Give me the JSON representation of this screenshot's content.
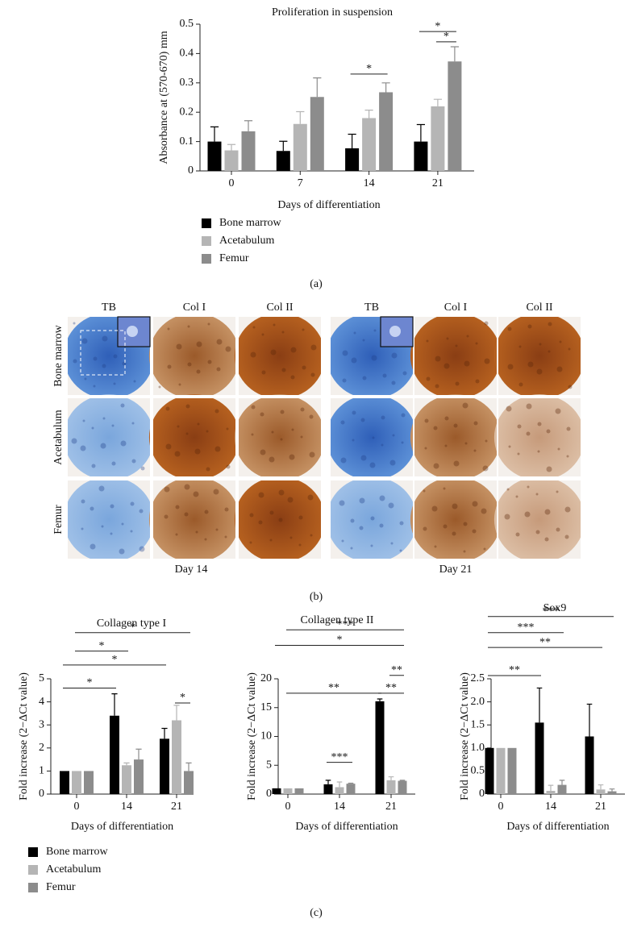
{
  "figure": {
    "panel_labels": [
      "(a)",
      "(b)",
      "(c)"
    ],
    "images": {
      "columns": [
        "TB",
        "Col I",
        "Col II",
        "TB",
        "Col I",
        "Col II"
      ],
      "rows": [
        "Bone marrow",
        "Acetabulum",
        "Femur"
      ],
      "groups": [
        "Day 14",
        "Day 21"
      ]
    }
  },
  "chart_data": [
    {
      "type": "bar",
      "title": "Proliferation in suspension",
      "xlabel": "Days of differentiation",
      "ylabel": "Absorbance at (570-670) mm",
      "categories": [
        "0",
        "7",
        "14",
        "21"
      ],
      "ylim": [
        0,
        0.5
      ],
      "yticks": [
        0,
        0.1,
        0.2,
        0.3,
        0.4,
        0.5
      ],
      "legend": true,
      "series": [
        {
          "name": "Bone marrow",
          "color": "#000000",
          "values": [
            0.1,
            0.068,
            0.077,
            0.1
          ],
          "errors": [
            0.05,
            0.033,
            0.048,
            0.058
          ]
        },
        {
          "name": "Acetabulum",
          "color": "#b5b5b5",
          "values": [
            0.07,
            0.16,
            0.18,
            0.22
          ],
          "errors": [
            0.02,
            0.042,
            0.027,
            0.024
          ]
        },
        {
          "name": "Femur",
          "color": "#8c8c8c",
          "values": [
            0.135,
            0.252,
            0.268,
            0.373
          ],
          "errors": [
            0.036,
            0.065,
            0.032,
            0.05
          ]
        }
      ],
      "brackets": [
        {
          "text": "*",
          "y": 0.33,
          "from": [
            2,
            0
          ],
          "to": [
            2,
            2
          ]
        },
        {
          "text": "*",
          "y": 0.475,
          "from": [
            3,
            0
          ],
          "to": [
            3,
            2
          ]
        },
        {
          "text": "*",
          "y": 0.44,
          "from": [
            3,
            1
          ],
          "to": [
            3,
            2
          ]
        }
      ]
    },
    {
      "type": "bar",
      "title": "Collagen type I",
      "xlabel": "Days of differentiation",
      "ylabel": "Fold increase (2−ΔCt value)",
      "categories": [
        "0",
        "14",
        "21"
      ],
      "ylim": [
        0,
        5
      ],
      "yticks": [
        0,
        1,
        2,
        3,
        4,
        5
      ],
      "legend": true,
      "series": [
        {
          "name": "Bone marrow",
          "color": "#000000",
          "values": [
            1,
            3.4,
            2.4
          ],
          "errors": [
            null,
            0.95,
            0.45
          ]
        },
        {
          "name": "Acetabulum",
          "color": "#b5b5b5",
          "values": [
            1,
            1.25,
            3.2
          ],
          "errors": [
            null,
            0.1,
            0.65
          ]
        },
        {
          "name": "Femur",
          "color": "#8c8c8c",
          "values": [
            1,
            1.5,
            1
          ],
          "errors": [
            null,
            0.45,
            0.35
          ]
        }
      ],
      "brackets": [
        {
          "text": "*",
          "y": 7.0,
          "from": [
            0,
            1
          ],
          "to": [
            2,
            2
          ]
        },
        {
          "text": "*",
          "y": 6.2,
          "from": [
            0,
            1
          ],
          "to": [
            1,
            1
          ]
        },
        {
          "text": "*",
          "y": 5.6,
          "from": [
            0,
            0
          ],
          "to": [
            2,
            0
          ]
        },
        {
          "text": "*",
          "y": 4.6,
          "from": [
            0,
            0
          ],
          "to": [
            1,
            0
          ]
        },
        {
          "text": "*",
          "y": 3.95,
          "from": [
            2,
            1
          ],
          "to": [
            2,
            2
          ]
        }
      ]
    },
    {
      "type": "bar",
      "title": "Collagen type II",
      "xlabel": "Days of differentiation",
      "ylabel": "Fold increase (2−ΔCt value)",
      "categories": [
        "0",
        "14",
        "21"
      ],
      "ylim": [
        0,
        20
      ],
      "yticks": [
        0,
        5,
        10,
        15,
        20
      ],
      "series": [
        {
          "color": "#000000",
          "values": [
            1,
            1.7,
            16.1
          ],
          "errors": [
            null,
            0.7,
            0.4
          ]
        },
        {
          "color": "#b5b5b5",
          "values": [
            1,
            1.2,
            2.4
          ],
          "errors": [
            null,
            0.9,
            0.6
          ]
        },
        {
          "color": "#8c8c8c",
          "values": [
            1,
            1.8,
            2.3
          ],
          "errors": [
            null,
            0.1,
            0.1
          ]
        }
      ],
      "brackets": [
        {
          "text": "***",
          "y": 28.5,
          "from": [
            0,
            1
          ],
          "to": [
            2,
            2
          ]
        },
        {
          "text": "*",
          "y": 25.8,
          "from": [
            0,
            0
          ],
          "to": [
            2,
            2
          ]
        },
        {
          "text": "**",
          "y": 20.6,
          "from": [
            2,
            1
          ],
          "to": [
            2,
            2
          ]
        },
        {
          "text": "**",
          "y": 17.5,
          "from": [
            0,
            1
          ],
          "to": [
            2,
            0
          ]
        },
        {
          "text": "**",
          "y": 17.5,
          "from": [
            2,
            0
          ],
          "to": [
            2,
            2
          ]
        },
        {
          "text": "***",
          "y": 5.5,
          "from": [
            1,
            0
          ],
          "to": [
            1,
            2
          ]
        }
      ]
    },
    {
      "type": "bar",
      "title": "Sox9",
      "xlabel": "Days of differentiation",
      "ylabel": "Fold increase (2−ΔCt value)",
      "categories": [
        "0",
        "14",
        "21"
      ],
      "ylim": [
        0,
        2.5
      ],
      "yticks": [
        0,
        0.5,
        {
          "value": 1,
          "label": "1.0"
        },
        1.5,
        {
          "value": 2,
          "label": "2.0"
        },
        2.5
      ],
      "series": [
        {
          "color": "#000000",
          "values": [
            1,
            1.55,
            1.25
          ],
          "errors": [
            null,
            0.75,
            0.7
          ]
        },
        {
          "color": "#b5b5b5",
          "values": [
            1,
            0.07,
            0.1
          ],
          "errors": [
            null,
            0.12,
            0.1
          ]
        },
        {
          "color": "#8c8c8c",
          "values": [
            1,
            0.2,
            0.06
          ],
          "errors": [
            null,
            0.1,
            0.05
          ]
        }
      ],
      "brackets": [
        {
          "text": "***",
          "y": 3.85,
          "from": [
            0,
            0
          ],
          "to": [
            2,
            2
          ]
        },
        {
          "text": "***",
          "y": 3.5,
          "from": [
            0,
            0
          ],
          "to": [
            1,
            2
          ]
        },
        {
          "text": "**",
          "y": 3.18,
          "from": [
            0,
            0
          ],
          "to": [
            2,
            1
          ]
        },
        {
          "text": "**",
          "y": 2.57,
          "from": [
            0,
            0
          ],
          "to": [
            1,
            0
          ]
        }
      ]
    }
  ]
}
